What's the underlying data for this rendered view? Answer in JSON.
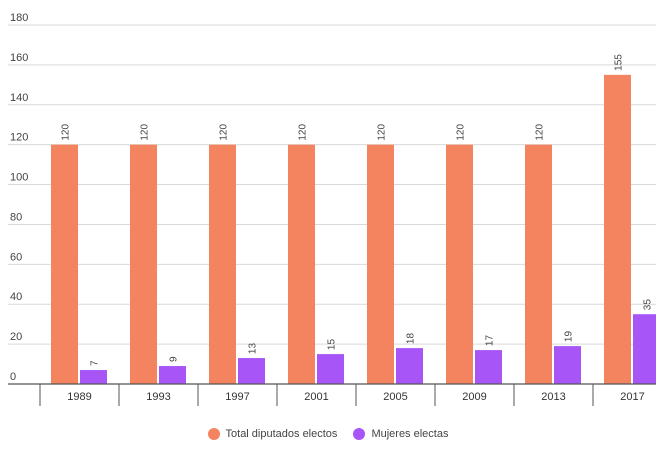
{
  "chart_data": {
    "type": "bar",
    "categories": [
      "1989",
      "1993",
      "1997",
      "2001",
      "2005",
      "2009",
      "2013",
      "2017"
    ],
    "series": [
      {
        "name": "Total diputados electos",
        "values": [
          120,
          120,
          120,
          120,
          120,
          120,
          120,
          155
        ],
        "color": "#f4845f"
      },
      {
        "name": "Mujeres electas",
        "values": [
          7,
          9,
          13,
          15,
          18,
          17,
          19,
          35
        ],
        "color": "#a855f7"
      }
    ],
    "y_ticks": [
      0,
      20,
      40,
      60,
      80,
      100,
      120,
      140,
      160,
      180
    ],
    "ylim": [
      0,
      180
    ],
    "grid": true,
    "legend_position": "bottom",
    "data_labels": true
  }
}
